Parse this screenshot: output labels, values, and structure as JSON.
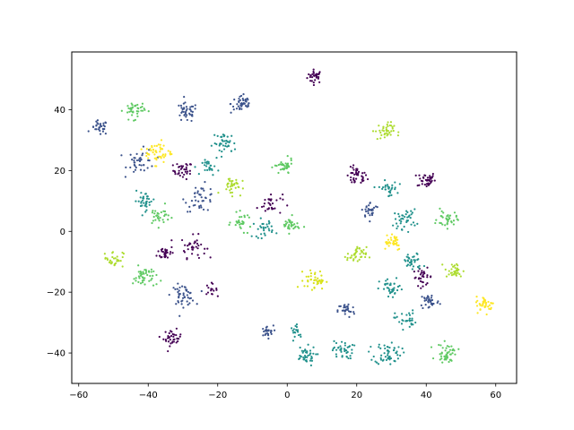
{
  "chart_data": {
    "type": "scatter",
    "title": "",
    "xlabel": "",
    "ylabel": "",
    "xlim": [
      -62,
      66
    ],
    "ylim": [
      -50,
      59
    ],
    "grid": false,
    "x_ticks": [
      -60,
      -40,
      -20,
      0,
      20,
      40,
      60
    ],
    "y_ticks": [
      -40,
      -20,
      0,
      20,
      40
    ],
    "x_tick_labels": [
      "−60",
      "−40",
      "−20",
      "0",
      "20",
      "40",
      "60"
    ],
    "y_tick_labels": [
      "−40",
      "−20",
      "0",
      "20",
      "40"
    ],
    "colormap": "viridis",
    "clusters": [
      {
        "cx": 8,
        "cy": 51,
        "sd": 1.1,
        "n": 30,
        "color": "#440154"
      },
      {
        "cx": -30,
        "cy": 20,
        "sd": 1.4,
        "n": 35,
        "color": "#440154"
      },
      {
        "cx": 20,
        "cy": 18,
        "sd": 1.5,
        "n": 40,
        "color": "#440154"
      },
      {
        "cx": 40,
        "cy": 17,
        "sd": 1.3,
        "n": 40,
        "color": "#440154"
      },
      {
        "cx": -35,
        "cy": -7,
        "sd": 1.2,
        "n": 30,
        "color": "#440154"
      },
      {
        "cx": -27,
        "cy": -5,
        "sd": 1.8,
        "n": 35,
        "color": "#440154"
      },
      {
        "cx": -5,
        "cy": 9,
        "sd": 1.8,
        "n": 30,
        "color": "#440154"
      },
      {
        "cx": -33,
        "cy": -35,
        "sd": 1.3,
        "n": 35,
        "color": "#440154"
      },
      {
        "cx": 39,
        "cy": -15,
        "sd": 1.4,
        "n": 30,
        "color": "#440154"
      },
      {
        "cx": -22,
        "cy": -19,
        "sd": 0.9,
        "n": 15,
        "color": "#440154"
      },
      {
        "cx": -13,
        "cy": 42,
        "sd": 1.6,
        "n": 45,
        "color": "#3b528b"
      },
      {
        "cx": -29,
        "cy": 39,
        "sd": 1.6,
        "n": 40,
        "color": "#3b528b"
      },
      {
        "cx": -54,
        "cy": 34,
        "sd": 1.2,
        "n": 30,
        "color": "#3b528b"
      },
      {
        "cx": -42,
        "cy": 23,
        "sd": 2.0,
        "n": 40,
        "color": "#3b528b"
      },
      {
        "cx": -25,
        "cy": 11,
        "sd": 2.2,
        "n": 40,
        "color": "#3b528b"
      },
      {
        "cx": -30,
        "cy": -21,
        "sd": 1.7,
        "n": 45,
        "color": "#3b528b"
      },
      {
        "cx": -6,
        "cy": -33,
        "sd": 1.0,
        "n": 25,
        "color": "#3b528b"
      },
      {
        "cx": 17,
        "cy": -26,
        "sd": 1.2,
        "n": 30,
        "color": "#3b528b"
      },
      {
        "cx": 41,
        "cy": -23,
        "sd": 1.4,
        "n": 35,
        "color": "#3b528b"
      },
      {
        "cx": 24,
        "cy": 7,
        "sd": 1.3,
        "n": 30,
        "color": "#3b528b"
      },
      {
        "cx": 29,
        "cy": -40,
        "sd": 1.9,
        "n": 55,
        "color": "#21918c"
      },
      {
        "cx": 5,
        "cy": -41,
        "sd": 1.6,
        "n": 40,
        "color": "#21918c"
      },
      {
        "cx": 16,
        "cy": -39,
        "sd": 1.5,
        "n": 40,
        "color": "#21918c"
      },
      {
        "cx": 34,
        "cy": -29,
        "sd": 1.5,
        "n": 30,
        "color": "#21918c"
      },
      {
        "cx": 30,
        "cy": -19,
        "sd": 1.7,
        "n": 35,
        "color": "#21918c"
      },
      {
        "cx": 36,
        "cy": -10,
        "sd": 1.5,
        "n": 35,
        "color": "#21918c"
      },
      {
        "cx": 34,
        "cy": 4,
        "sd": 1.6,
        "n": 40,
        "color": "#21918c"
      },
      {
        "cx": 29,
        "cy": 14,
        "sd": 1.3,
        "n": 30,
        "color": "#21918c"
      },
      {
        "cx": -41,
        "cy": 10,
        "sd": 1.5,
        "n": 35,
        "color": "#21918c"
      },
      {
        "cx": -18,
        "cy": 29,
        "sd": 1.7,
        "n": 40,
        "color": "#21918c"
      },
      {
        "cx": -22,
        "cy": 21,
        "sd": 1.2,
        "n": 25,
        "color": "#21918c"
      },
      {
        "cx": -7,
        "cy": 1,
        "sd": 1.5,
        "n": 30,
        "color": "#21918c"
      },
      {
        "cx": 3,
        "cy": -33,
        "sd": 1.0,
        "n": 18,
        "color": "#21918c"
      },
      {
        "cx": -44,
        "cy": 40,
        "sd": 1.5,
        "n": 40,
        "color": "#5ec962"
      },
      {
        "cx": -41,
        "cy": -15,
        "sd": 1.7,
        "n": 45,
        "color": "#5ec962"
      },
      {
        "cx": -37,
        "cy": 5,
        "sd": 1.6,
        "n": 30,
        "color": "#5ec962"
      },
      {
        "cx": -13,
        "cy": 3,
        "sd": 1.4,
        "n": 30,
        "color": "#5ec962"
      },
      {
        "cx": -1,
        "cy": 21,
        "sd": 1.3,
        "n": 35,
        "color": "#5ec962"
      },
      {
        "cx": 1,
        "cy": 2,
        "sd": 1.3,
        "n": 35,
        "color": "#5ec962"
      },
      {
        "cx": 46,
        "cy": 4,
        "sd": 1.4,
        "n": 35,
        "color": "#5ec962"
      },
      {
        "cx": 46,
        "cy": -40,
        "sd": 1.5,
        "n": 45,
        "color": "#5ec962"
      },
      {
        "cx": -50,
        "cy": -9,
        "sd": 1.4,
        "n": 30,
        "color": "#addc30"
      },
      {
        "cx": -16,
        "cy": 15,
        "sd": 1.5,
        "n": 35,
        "color": "#addc30"
      },
      {
        "cx": 28,
        "cy": 33,
        "sd": 1.4,
        "n": 40,
        "color": "#addc30"
      },
      {
        "cx": 20,
        "cy": -8,
        "sd": 1.4,
        "n": 40,
        "color": "#addc30"
      },
      {
        "cx": 48,
        "cy": -13,
        "sd": 1.3,
        "n": 35,
        "color": "#addc30"
      },
      {
        "cx": 8,
        "cy": -16,
        "sd": 1.5,
        "n": 40,
        "color": "#d8e219"
      },
      {
        "cx": -37,
        "cy": 26,
        "sd": 1.9,
        "n": 50,
        "color": "#fde725"
      },
      {
        "cx": 30,
        "cy": -3,
        "sd": 1.6,
        "n": 35,
        "color": "#fde725"
      },
      {
        "cx": 57,
        "cy": -24,
        "sd": 1.3,
        "n": 40,
        "color": "#fde725"
      }
    ]
  }
}
